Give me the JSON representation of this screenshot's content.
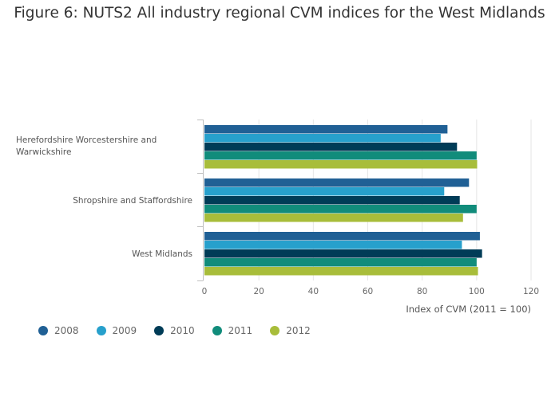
{
  "chart_data": {
    "type": "bar",
    "orientation": "horizontal",
    "title": "Figure 6: NUTS2 All industry regional CVM indices for the West Midlands",
    "xlabel": "Index of CVM (2011 = 100)",
    "ylabel": "",
    "xlim": [
      0,
      120
    ],
    "xticks": [
      "0",
      "20",
      "40",
      "60",
      "80",
      "100",
      "120"
    ],
    "categories": [
      "Herefordshire Worcestershire and Warwickshire",
      "Shropshire and Staffordshire",
      "West Midlands"
    ],
    "category_lines": [
      [
        "Herefordshire Worcestershire and",
        "Warwickshire"
      ],
      [
        "Shropshire and Staffordshire"
      ],
      [
        "West Midlands"
      ]
    ],
    "series": [
      {
        "name": "2008",
        "color": "#206095",
        "values": [
          89.3,
          97.2,
          101.2
        ]
      },
      {
        "name": "2009",
        "color": "#27a0cc",
        "values": [
          86.8,
          88.1,
          94.6
        ]
      },
      {
        "name": "2010",
        "color": "#003c57",
        "values": [
          92.8,
          93.8,
          102.0
        ]
      },
      {
        "name": "2011",
        "color": "#118c7b",
        "values": [
          100.0,
          100.0,
          100.0
        ]
      },
      {
        "name": "2012",
        "color": "#a8bd3a",
        "values": [
          100.2,
          95.0,
          100.5
        ]
      }
    ],
    "grid": true,
    "legend_position": "bottom-left"
  }
}
